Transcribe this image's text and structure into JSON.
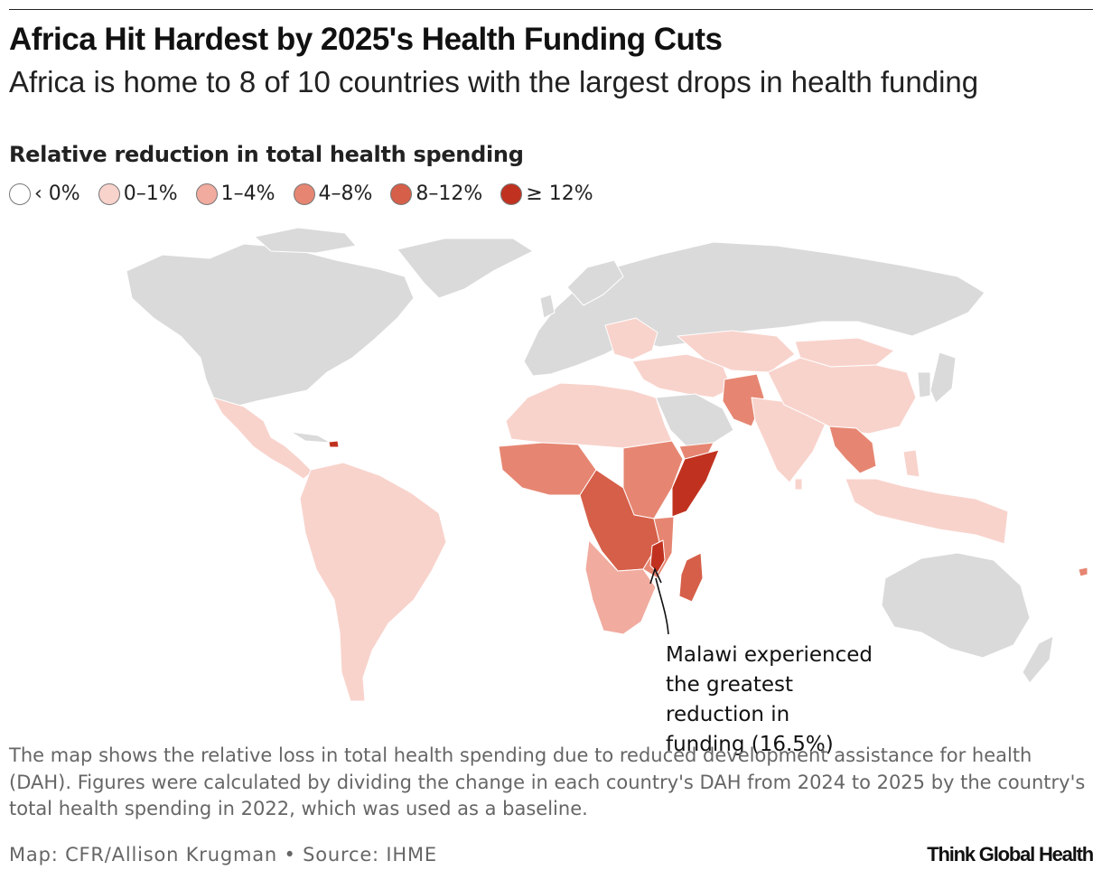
{
  "header": {
    "title": "Africa Hit Hardest by 2025's Health Funding Cuts",
    "subtitle": "Africa is home to 8 of 10 countries with the largest drops in health funding"
  },
  "legend": {
    "title": "Relative reduction in total health spending",
    "items": [
      {
        "label": "‹ 0%",
        "color": "#ffffff"
      },
      {
        "label": "0–1%",
        "color": "#f8d3cc"
      },
      {
        "label": "1–4%",
        "color": "#f1ab9f"
      },
      {
        "label": "4–8%",
        "color": "#e68672"
      },
      {
        "label": "8–12%",
        "color": "#d65f49"
      },
      {
        "label": "≥ 12%",
        "color": "#c0321f"
      }
    ]
  },
  "map": {
    "no_data_color": "#dadada",
    "border_color": "#ffffff",
    "regions": {
      "north_america": "no data",
      "mexico_central_america": "0–1%",
      "haiti": "≥ 12%",
      "south_america": "0–1%",
      "europe_russia": "no data",
      "eastern_europe": "0–1%",
      "middle_east": "0–1%",
      "arabian_peninsula": "no data",
      "yemen": "4–8%",
      "north_africa": "0–1%",
      "west_africa": "4–8%",
      "central_africa": "8–12%",
      "east_africa": "4–8%",
      "somalia": "≥ 12%",
      "southern_africa": "1–4%",
      "madagascar": "8–12%",
      "malawi": "≥ 12%",
      "afghanistan_pakistan": "4–8%",
      "central_asia": "0–1%",
      "south_asia": "0–1%",
      "china": "0–1%",
      "mongolia": "0–1%",
      "southeast_asia": "0–1%",
      "myanmar_laos_cambodia": "4–8%",
      "japan_korea": "no data",
      "australia_nz": "no data",
      "pacific_islands": "4–8%"
    }
  },
  "annotation": {
    "text": "Malawi experienced the greatest reduction in funding (16.5%)"
  },
  "footer": {
    "note": "The map shows the relative loss in total health spending due to reduced development assistance for health (DAH). Figures were calculated by dividing the change in each country's DAH from 2024 to 2025 by the country's total health spending in 2022, which was used as a baseline.",
    "credit": "Map: CFR/Allison Krugman • Source: IHME",
    "brand": "Think Global Health"
  }
}
